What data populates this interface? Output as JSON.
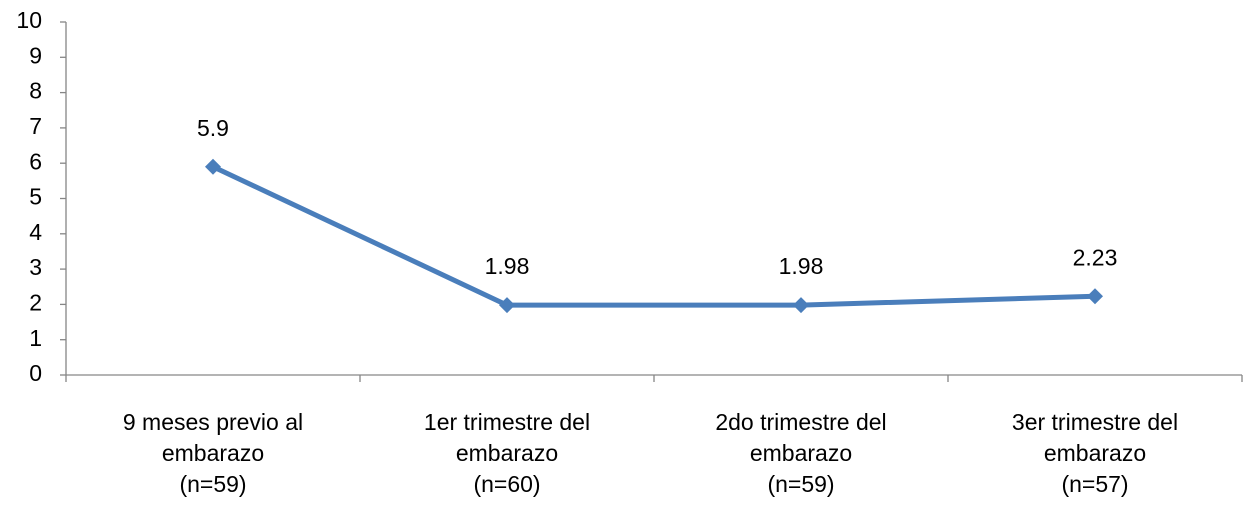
{
  "chart_data": {
    "type": "line",
    "categories": [
      "9 meses previo al\nembarazo\n(n=59)",
      "1er trimestre del\nembarazo\n(n=60)",
      "2do trimestre del\nembarazo\n(n=59)",
      "3er trimestre del\nembarazo\n(n=57)"
    ],
    "series": [
      {
        "color": "#4a7ebb",
        "values": [
          5.9,
          1.98,
          1.98,
          2.23
        ]
      }
    ],
    "ylim": [
      0,
      10
    ],
    "yticks": [
      0,
      1,
      2,
      3,
      4,
      5,
      6,
      7,
      8,
      9,
      10
    ],
    "grid": false
  }
}
